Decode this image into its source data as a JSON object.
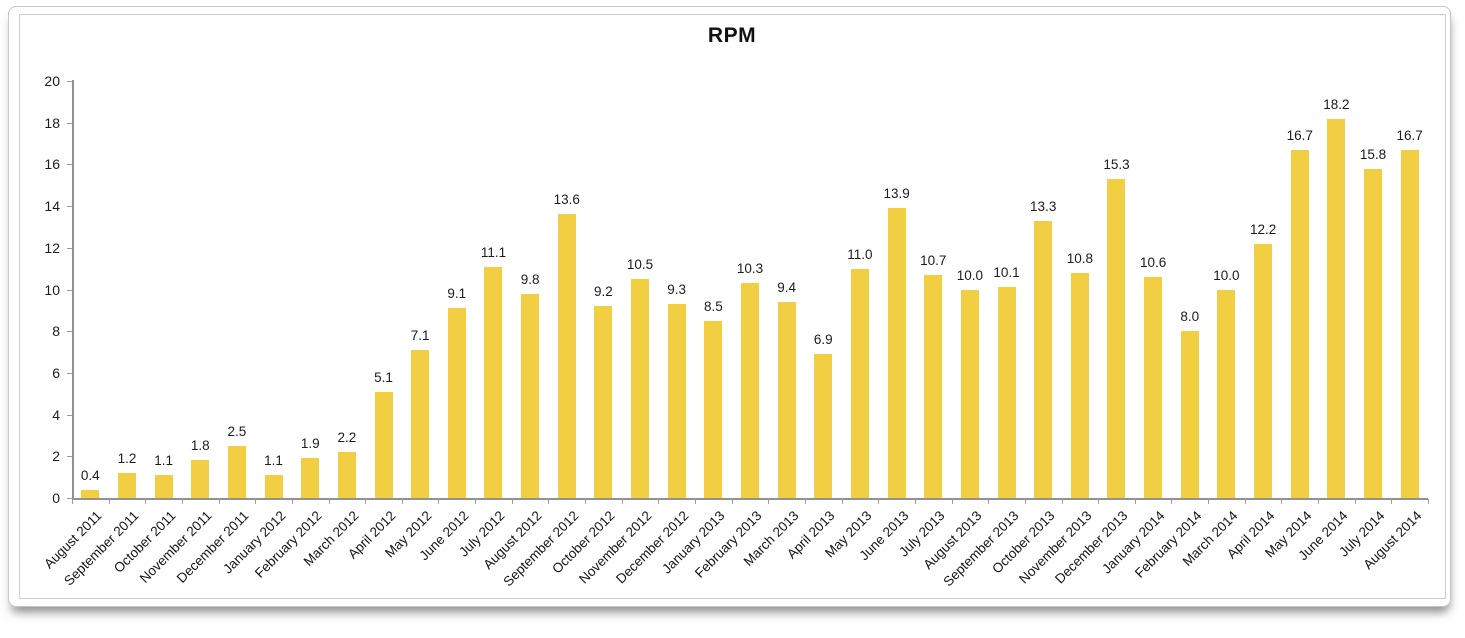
{
  "chart_data": {
    "type": "bar",
    "title": "RPM",
    "xlabel": "",
    "ylabel": "",
    "ylim": [
      0,
      20
    ],
    "yticks": [
      0,
      2,
      4,
      6,
      8,
      10,
      12,
      14,
      16,
      18,
      20
    ],
    "grid": false,
    "legend": false,
    "bar_color": "#F2CE42",
    "axis_color": "#919191",
    "text_color": "#1c1c1c",
    "categories": [
      "August 2011",
      "September 2011",
      "October 2011",
      "November 2011",
      "December 2011",
      "January 2012",
      "February 2012",
      "March 2012",
      "April 2012",
      "May 2012",
      "June 2012",
      "July 2012",
      "August 2012",
      "September 2012",
      "October 2012",
      "November 2012",
      "December 2012",
      "January 2013",
      "February 2013",
      "March 2013",
      "April 2013",
      "May 2013",
      "June 2013",
      "July 2013",
      "August 2013",
      "September 2013",
      "October 2013",
      "November 2013",
      "December 2013",
      "January 2014",
      "February 2014",
      "March 2014",
      "April 2014",
      "May 2014",
      "June 2014",
      "July 2014",
      "August 2014"
    ],
    "values": [
      0.4,
      1.2,
      1.1,
      1.8,
      2.5,
      1.1,
      1.9,
      2.2,
      5.1,
      7.1,
      9.1,
      11.1,
      9.8,
      13.6,
      9.2,
      10.5,
      9.3,
      8.5,
      10.3,
      9.4,
      6.9,
      11.0,
      13.9,
      10.7,
      10.0,
      10.1,
      13.3,
      10.8,
      15.3,
      10.6,
      8.0,
      10.0,
      12.2,
      16.7,
      18.2,
      15.8,
      16.7
    ],
    "value_labels": [
      "0.4",
      "1.2",
      "1.1",
      "1.8",
      "2.5",
      "1.1",
      "1.9",
      "2.2",
      "5.1",
      "7.1",
      "9.1",
      "11.1",
      "9.8",
      "13.6",
      "9.2",
      "10.5",
      "9.3",
      "8.5",
      "10.3",
      "9.4",
      "6.9",
      "11.0",
      "13.9",
      "10.7",
      "10.0",
      "10.1",
      "13.3",
      "10.8",
      "15.3",
      "10.6",
      "8.0",
      "10.0",
      "12.2",
      "16.7",
      "18.2",
      "15.8",
      "16.7"
    ]
  }
}
